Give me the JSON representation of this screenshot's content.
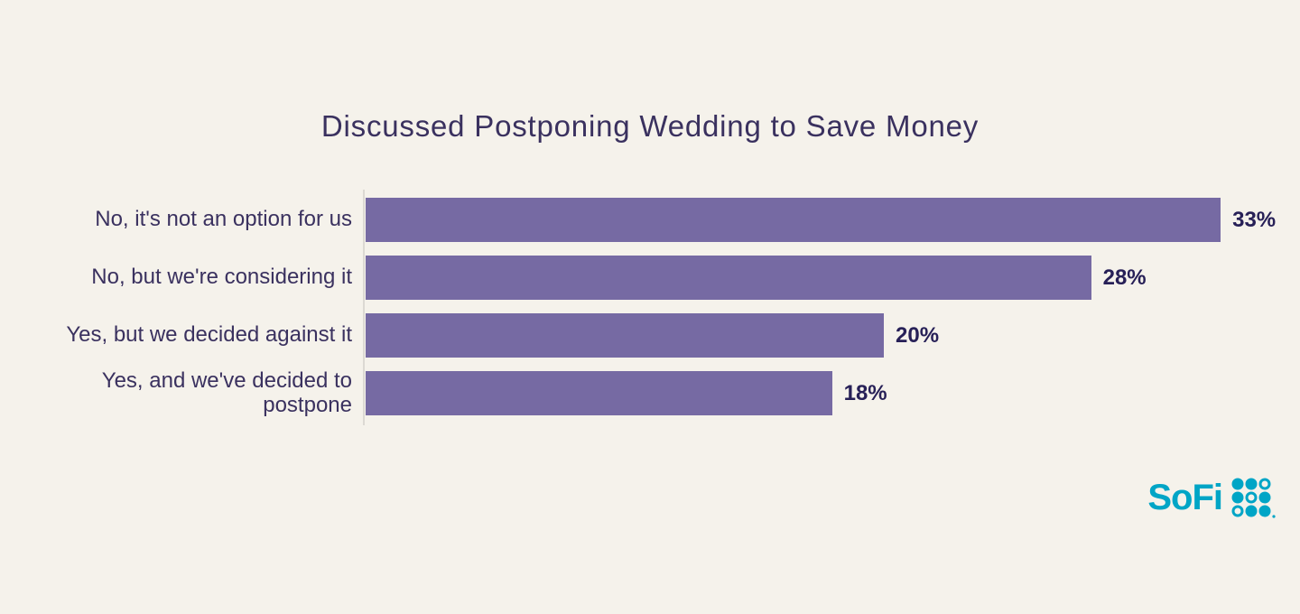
{
  "page": {
    "background_color": "#f5f2eb"
  },
  "chart_data": {
    "type": "bar",
    "orientation": "horizontal",
    "title": "Discussed Postponing Wedding to Save Money",
    "categories": [
      "No, it's not an option for us",
      "No, but we're considering it",
      "Yes, but we decided against it",
      "Yes, and we've decided to\npostpone"
    ],
    "values": [
      33,
      28,
      20,
      18
    ],
    "value_labels": [
      "33%",
      "28%",
      "20%",
      "18%"
    ],
    "xlabel": "",
    "ylabel": "",
    "xlim": [
      0,
      35
    ],
    "grid": false,
    "legend": null,
    "bar_color": "#766aa3",
    "category_label_color": "#3a315f",
    "value_label_color": "#272057",
    "title_color": "#3a315f",
    "axis_line_color": "#dcd9d3"
  },
  "branding": {
    "logo_text": "SoFi",
    "logo_color": "#00a5c6",
    "logo_dots_icon": "sofi-dots-grid-icon",
    "dot_pattern": [
      [
        "filled",
        "filled",
        "ring"
      ],
      [
        "filled",
        "ring",
        "filled"
      ],
      [
        "ring",
        "filled",
        "filled"
      ]
    ]
  }
}
